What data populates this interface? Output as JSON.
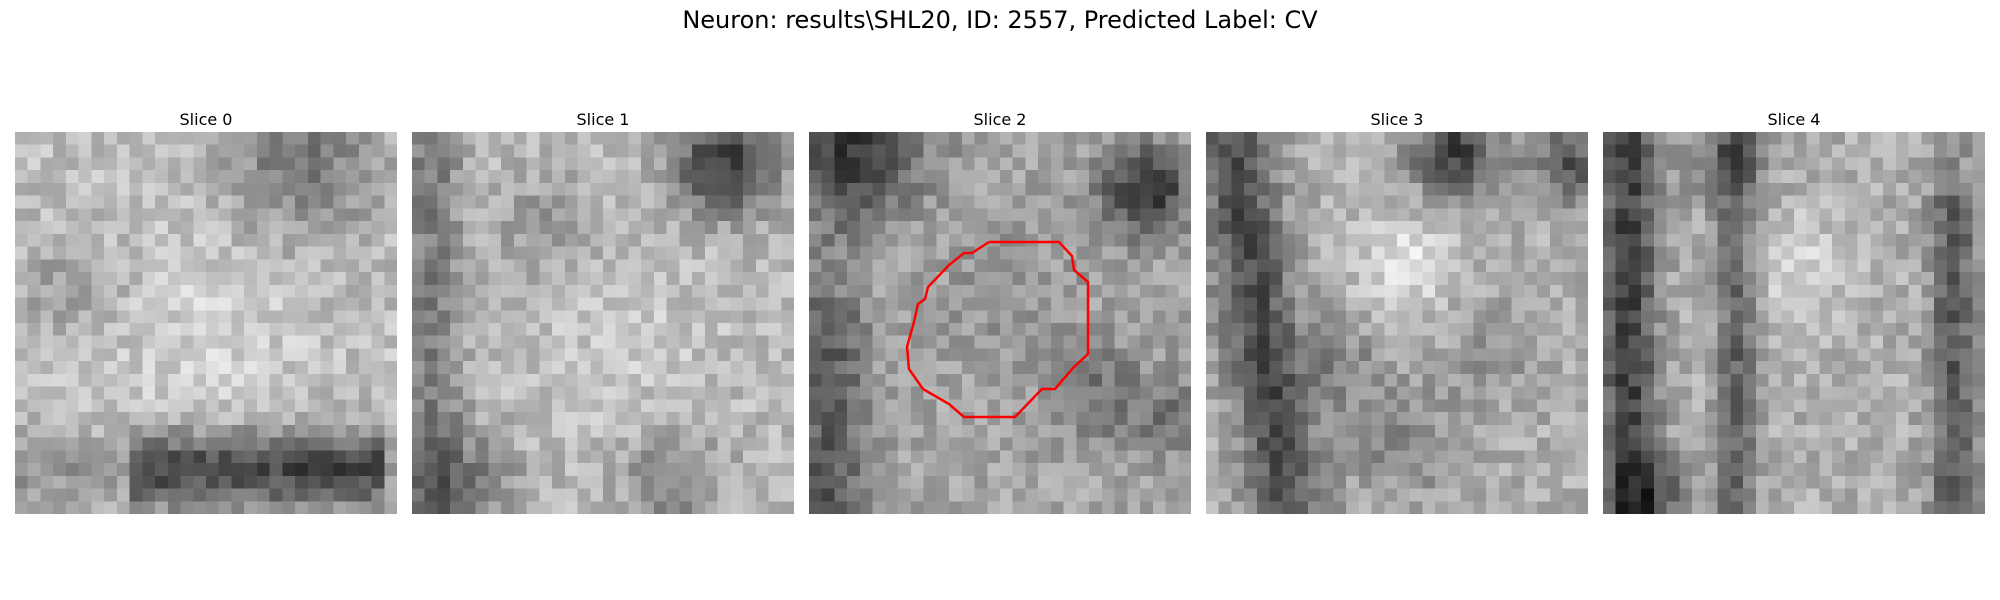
{
  "figure": {
    "title": "Neuron: results\\SHL20, ID: 2557, Predicted Label: CV"
  },
  "slices": [
    {
      "title": "Slice 0"
    },
    {
      "title": "Slice 1"
    },
    {
      "title": "Slice 2"
    },
    {
      "title": "Slice 3"
    },
    {
      "title": "Slice 4"
    }
  ],
  "colors": {
    "contour": "#ff0000",
    "colormap": "gray"
  }
}
